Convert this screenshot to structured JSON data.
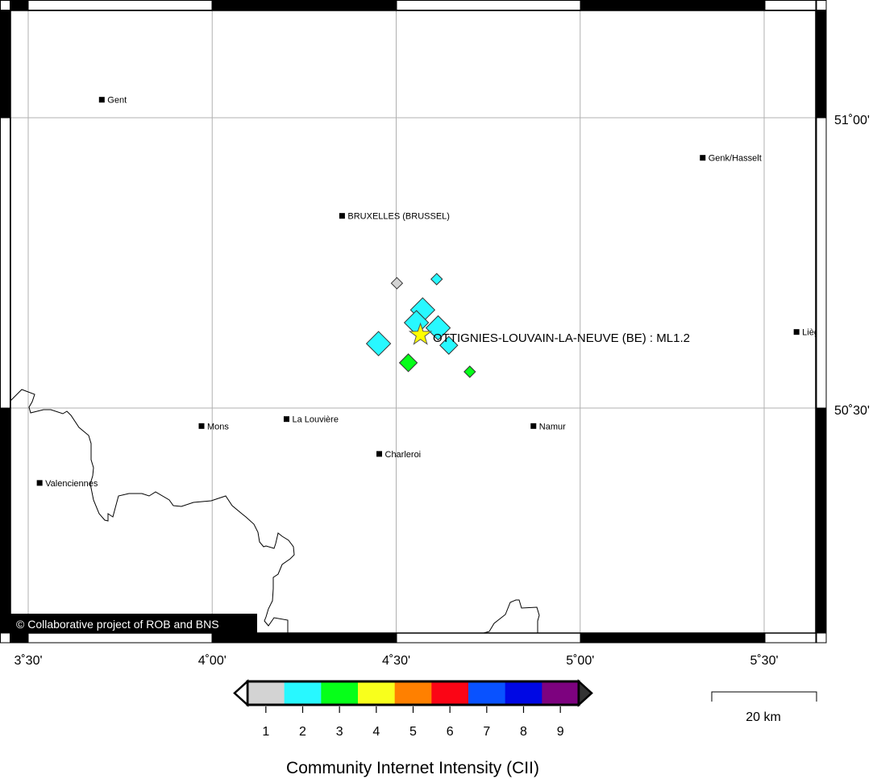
{
  "map": {
    "lon_ticks": [
      {
        "value": 3.5,
        "label": "3˚30'"
      },
      {
        "value": 4.0,
        "label": "4˚00'"
      },
      {
        "value": 4.5,
        "label": "4˚30'"
      },
      {
        "value": 5.0,
        "label": "5˚00'"
      },
      {
        "value": 5.5,
        "label": "5˚30'"
      }
    ],
    "lat_ticks": [
      {
        "value": 51.0,
        "label": "51˚00'"
      },
      {
        "value": 50.5,
        "label": "50˚30'"
      }
    ],
    "cities": [
      {
        "name": "Gent",
        "lon": 3.7,
        "lat": 51.031
      },
      {
        "name": "Genk/Hasselt",
        "lon": 5.333,
        "lat": 50.931
      },
      {
        "name": "BRUXELLES (BRUSSEL)",
        "lon": 4.353,
        "lat": 50.831
      },
      {
        "name": "Liège",
        "lon": 5.588,
        "lat": 50.631
      },
      {
        "name": "Mons",
        "lon": 3.971,
        "lat": 50.469
      },
      {
        "name": "La Louvière",
        "lon": 4.202,
        "lat": 50.481
      },
      {
        "name": "Charleroi",
        "lon": 4.454,
        "lat": 50.421
      },
      {
        "name": "Namur",
        "lon": 4.873,
        "lat": 50.469
      },
      {
        "name": "Valenciennes",
        "lon": 3.531,
        "lat": 50.371
      }
    ],
    "reports": [
      {
        "lon": 4.502,
        "lat": 50.715,
        "cii": 1,
        "size": "small"
      },
      {
        "lon": 4.61,
        "lat": 50.722,
        "cii": 2,
        "size": "small"
      },
      {
        "lon": 4.572,
        "lat": 50.669,
        "cii": 2,
        "size": "large"
      },
      {
        "lon": 4.555,
        "lat": 50.647,
        "cii": 2,
        "size": "large"
      },
      {
        "lon": 4.614,
        "lat": 50.638,
        "cii": 2,
        "size": "large"
      },
      {
        "lon": 4.643,
        "lat": 50.608,
        "cii": 2,
        "size": "medium"
      },
      {
        "lon": 4.452,
        "lat": 50.611,
        "cii": 2,
        "size": "large"
      },
      {
        "lon": 4.533,
        "lat": 50.578,
        "cii": 3,
        "size": "medium"
      },
      {
        "lon": 4.7,
        "lat": 50.5625,
        "cii": 3,
        "size": "small"
      }
    ],
    "epicenter": {
      "lon": 4.566,
      "lat": 50.626,
      "label": "OTTIGNIES-LOUVAIN-LA-NEUVE (BE) : ML1.2",
      "color": "#ffff00"
    },
    "copyright": "© Collaborative project of ROB and BNS"
  },
  "colorbar": {
    "title": "Community Internet Intensity (CII)",
    "classes": [
      {
        "label": "1",
        "color": "#d3d3d3"
      },
      {
        "label": "2",
        "color": "#28f8ff"
      },
      {
        "label": "3",
        "color": "#06ff19"
      },
      {
        "label": "4",
        "color": "#f8ff1c"
      },
      {
        "label": "5",
        "color": "#ff8000"
      },
      {
        "label": "6",
        "color": "#fb0515"
      },
      {
        "label": "7",
        "color": "#0952ff"
      },
      {
        "label": "8",
        "color": "#0008e4"
      },
      {
        "label": "9",
        "color": "#7d027f"
      }
    ]
  },
  "scalebar": {
    "label": "20 km"
  }
}
